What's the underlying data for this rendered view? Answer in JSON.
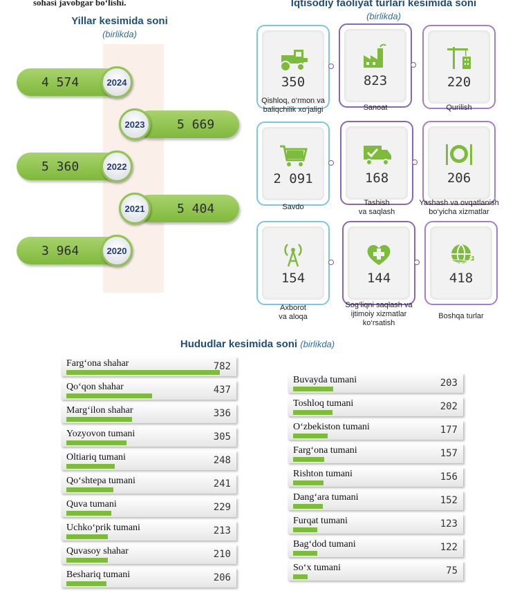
{
  "top_text": "sohasi javobgar bo‘lishi.",
  "years": {
    "title": "Yillar kesimida soni",
    "subtitle": "(birlikda)"
  },
  "activity": {
    "title": "Iqtisodiy faoliyat turlari kesimida soni",
    "subtitle": "(birlikda)"
  },
  "regions": {
    "title": "Hududlar kesimida soni",
    "subtitle": "(birlikda)"
  },
  "colors": {
    "green": "#7dbb3a",
    "navy": "#1f4e79",
    "cyan_border": "#7cc7e0",
    "purple_border": "#8a64b8"
  },
  "chart_data": [
    {
      "type": "bar",
      "title": "Yillar kesimida soni",
      "subtitle": "(birlikda)",
      "categories": [
        "2024",
        "2023",
        "2022",
        "2021",
        "2020"
      ],
      "values": [
        4574,
        5669,
        5360,
        5404,
        3964
      ],
      "value_labels": [
        "4 574",
        "5 669",
        "5 360",
        "5 404",
        "3 964"
      ]
    },
    {
      "type": "table",
      "title": "Iqtisodiy faoliyat turlari kesimida soni",
      "subtitle": "(birlikda)",
      "categories": [
        "Qishloq, o‘rmon va baliqchilik xo‘jaligi",
        "Sanoat",
        "Qurilish",
        "Savdo",
        "Tashish va saqlash",
        "Yashash va ovqatlanish bo‘yicha xizmatlar",
        "Axborot va aloqa",
        "Sog‘liqni saqlash va ijtimoiy xizmatlar ko‘rsatish",
        "Boshqa turlar"
      ],
      "values": [
        350,
        823,
        220,
        2091,
        168,
        206,
        154,
        144,
        418
      ],
      "items": [
        {
          "line1": "Qishloq, o‘rmon va",
          "line2": "baliqchilik xo‘jaligi",
          "line3": "",
          "value": "350",
          "icon": "tractor-icon"
        },
        {
          "line1": "Sanoat",
          "line2": "",
          "line3": "",
          "value": "823",
          "icon": "factory-icon"
        },
        {
          "line1": "Qurilish",
          "line2": "",
          "line3": "",
          "value": "220",
          "icon": "crane-icon"
        },
        {
          "line1": "Savdo",
          "line2": "",
          "line3": "",
          "value": "2 091",
          "icon": "shopping-cart-icon"
        },
        {
          "line1": "Tashish",
          "line2": "va saqlash",
          "line3": "",
          "value": "168",
          "icon": "delivery-truck-icon"
        },
        {
          "line1": "Yashash va ovqatlanish",
          "line2": "bo‘yicha xizmatlar",
          "line3": "",
          "value": "206",
          "icon": "plate-cutlery-icon"
        },
        {
          "line1": "Axborot",
          "line2": "va aloqa",
          "line3": "",
          "value": "154",
          "icon": "antenna-icon"
        },
        {
          "line1": "Sog‘liqni saqlash va",
          "line2": "ijtimoiy xizmatlar",
          "line3": "ko‘rsatish",
          "value": "144",
          "icon": "heart-cross-icon"
        },
        {
          "line1": "Boshqa turlar",
          "line2": "",
          "line3": "",
          "value": "418",
          "icon": "globe-arrow-icon"
        }
      ]
    },
    {
      "type": "bar",
      "title": "Hududlar kesimida soni",
      "subtitle": "(birlikda)",
      "categories": [
        "Farg‘ona shahar",
        "Qo‘qon shahar",
        "Marg‘ilon shahar",
        "Yozyovon tumani",
        "Oltiariq tumani",
        "Qo‘shtepa tumani",
        "Quva tumani",
        "Uchko‘prik tumani",
        "Quvasoy shahar",
        "Beshariq tumani",
        "Buvayda tumani",
        "Toshloq tumani",
        "O‘zbekiston tumani",
        "Farg‘ona tumani",
        "Rishton tumani",
        "Dang‘ara tumani",
        "Furqat tumani",
        "Bag‘dod tumani",
        "So‘x tumani"
      ],
      "values": [
        782,
        437,
        336,
        305,
        248,
        241,
        229,
        213,
        210,
        206,
        203,
        202,
        177,
        157,
        156,
        152,
        123,
        122,
        75
      ],
      "xlim": [
        0,
        782
      ]
    }
  ]
}
